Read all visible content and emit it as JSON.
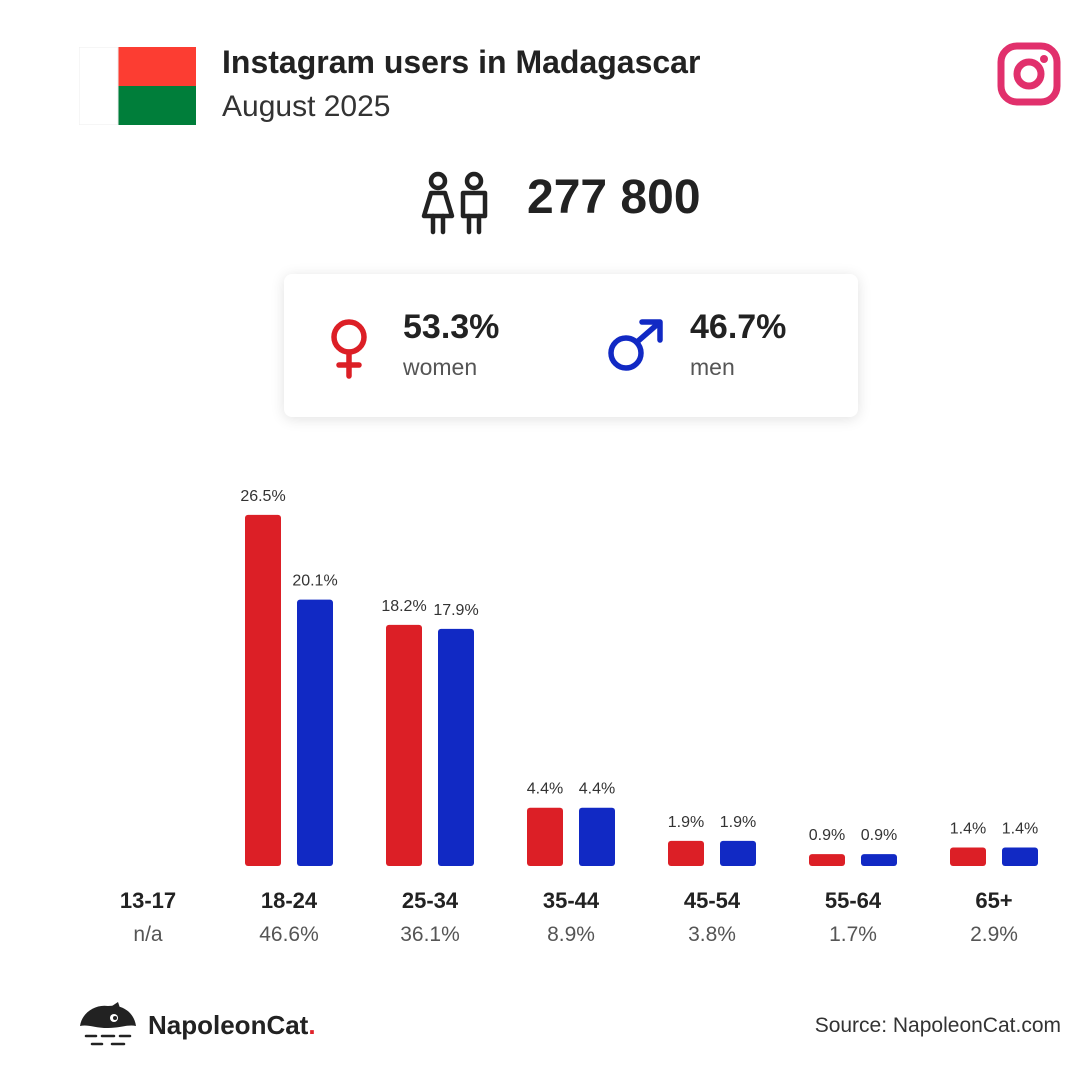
{
  "header": {
    "title": "Instagram users in Madagascar",
    "subtitle": "August 2025"
  },
  "flag": {
    "colors": [
      "#ffffff",
      "#fc3d32",
      "#007e3a"
    ]
  },
  "total_users": "277 800",
  "gender": {
    "women": {
      "pct": "53.3%",
      "label": "women",
      "color": "#dc1f26"
    },
    "men": {
      "pct": "46.7%",
      "label": "men",
      "color": "#1129c4"
    }
  },
  "chart_data": {
    "type": "bar",
    "categories": [
      "13-17",
      "18-24",
      "25-34",
      "35-44",
      "45-54",
      "55-64",
      "65+"
    ],
    "category_totals": [
      "n/a",
      "46.6%",
      "36.1%",
      "8.9%",
      "3.8%",
      "1.7%",
      "2.9%"
    ],
    "series": [
      {
        "values": [
          null,
          26.5,
          18.2,
          4.4,
          1.9,
          0.9,
          1.4
        ],
        "labels": [
          "",
          "26.5%",
          "18.2%",
          "4.4%",
          "1.9%",
          "0.9%",
          "1.4%"
        ],
        "color": "#dc1f26"
      },
      {
        "values": [
          null,
          20.1,
          17.9,
          4.4,
          1.9,
          0.9,
          1.4
        ],
        "labels": [
          "",
          "20.1%",
          "17.9%",
          "4.4%",
          "1.9%",
          "0.9%",
          "1.4%"
        ],
        "color": "#1129c4"
      }
    ],
    "legend": "none",
    "grid": false
  },
  "footer": {
    "brand": "NapoleonCat",
    "brand_dot": ".",
    "source": "Source: NapoleonCat.com"
  },
  "icons": {
    "instagram": "instagram-icon",
    "users": "users-icon",
    "female": "female-symbol-icon",
    "male": "male-symbol-icon",
    "brand": "napoleoncat-logo-icon"
  }
}
